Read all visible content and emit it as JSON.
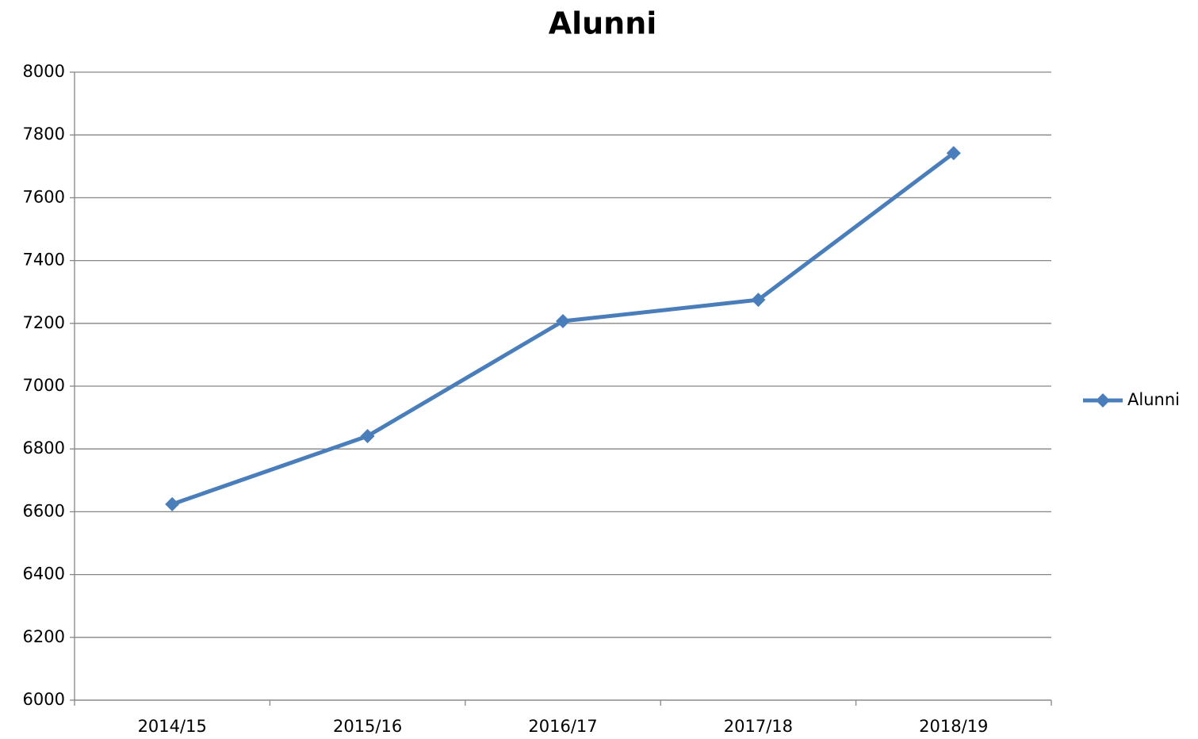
{
  "chart_data": {
    "type": "line",
    "title": "Alunni",
    "categories": [
      "2014/15",
      "2015/16",
      "2016/17",
      "2017/18",
      "2018/19"
    ],
    "series": [
      {
        "name": "Alunni",
        "color": "#4a7ebb",
        "values": [
          6624,
          6841,
          7207,
          7275,
          7742
        ]
      }
    ],
    "ylim": [
      6000,
      8000
    ],
    "yticks": [
      6000,
      6200,
      6400,
      6600,
      6800,
      7000,
      7200,
      7400,
      7600,
      7800,
      8000
    ],
    "grid": true,
    "legend": "right"
  }
}
